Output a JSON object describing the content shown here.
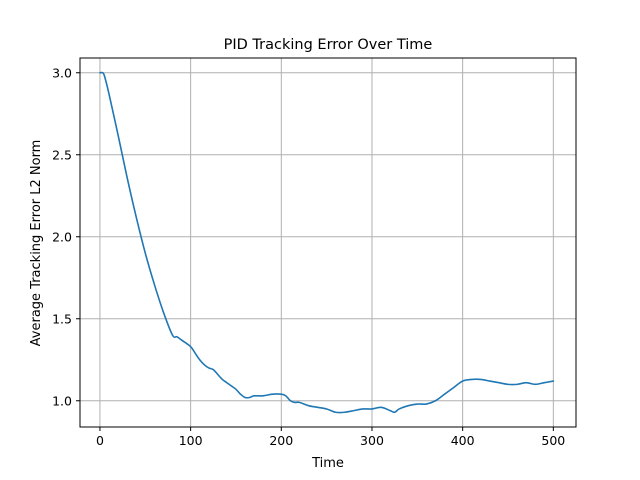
{
  "chart_data": {
    "type": "line",
    "title": "PID Tracking Error Over Time",
    "xlabel": "Time",
    "ylabel": "Average Tracking Error L2 Norm",
    "xlim": [
      -22,
      525
    ],
    "ylim": [
      0.84,
      3.09
    ],
    "x_ticks": [
      0,
      100,
      200,
      300,
      400,
      500
    ],
    "y_ticks": [
      1.0,
      1.5,
      2.0,
      2.5,
      3.0
    ],
    "x_tick_labels": [
      "0",
      "100",
      "200",
      "300",
      "400",
      "500"
    ],
    "y_tick_labels": [
      "1.0",
      "1.5",
      "2.0",
      "2.5",
      "3.0"
    ],
    "grid": true,
    "legend": "none",
    "series": [
      {
        "color": "#1f77b4",
        "x": [
          0,
          3,
          5,
          10,
          20,
          30,
          40,
          50,
          60,
          70,
          80,
          85,
          90,
          100,
          105,
          110,
          115,
          120,
          125,
          130,
          135,
          140,
          145,
          150,
          155,
          160,
          165,
          170,
          180,
          190,
          200,
          205,
          210,
          215,
          220,
          230,
          240,
          250,
          260,
          270,
          280,
          290,
          300,
          310,
          320,
          325,
          330,
          340,
          350,
          360,
          370,
          380,
          390,
          400,
          410,
          420,
          430,
          440,
          450,
          460,
          470,
          480,
          490,
          500
        ],
        "y": [
          3.0,
          3.0,
          2.98,
          2.87,
          2.62,
          2.36,
          2.12,
          1.9,
          1.71,
          1.54,
          1.4,
          1.39,
          1.37,
          1.33,
          1.29,
          1.25,
          1.22,
          1.2,
          1.19,
          1.16,
          1.13,
          1.11,
          1.09,
          1.07,
          1.04,
          1.02,
          1.02,
          1.03,
          1.03,
          1.04,
          1.04,
          1.03,
          1.0,
          0.99,
          0.99,
          0.97,
          0.96,
          0.95,
          0.93,
          0.93,
          0.94,
          0.95,
          0.95,
          0.96,
          0.94,
          0.93,
          0.95,
          0.97,
          0.98,
          0.98,
          1.0,
          1.04,
          1.08,
          1.12,
          1.13,
          1.13,
          1.12,
          1.11,
          1.1,
          1.1,
          1.11,
          1.1,
          1.11,
          1.12
        ]
      }
    ]
  }
}
